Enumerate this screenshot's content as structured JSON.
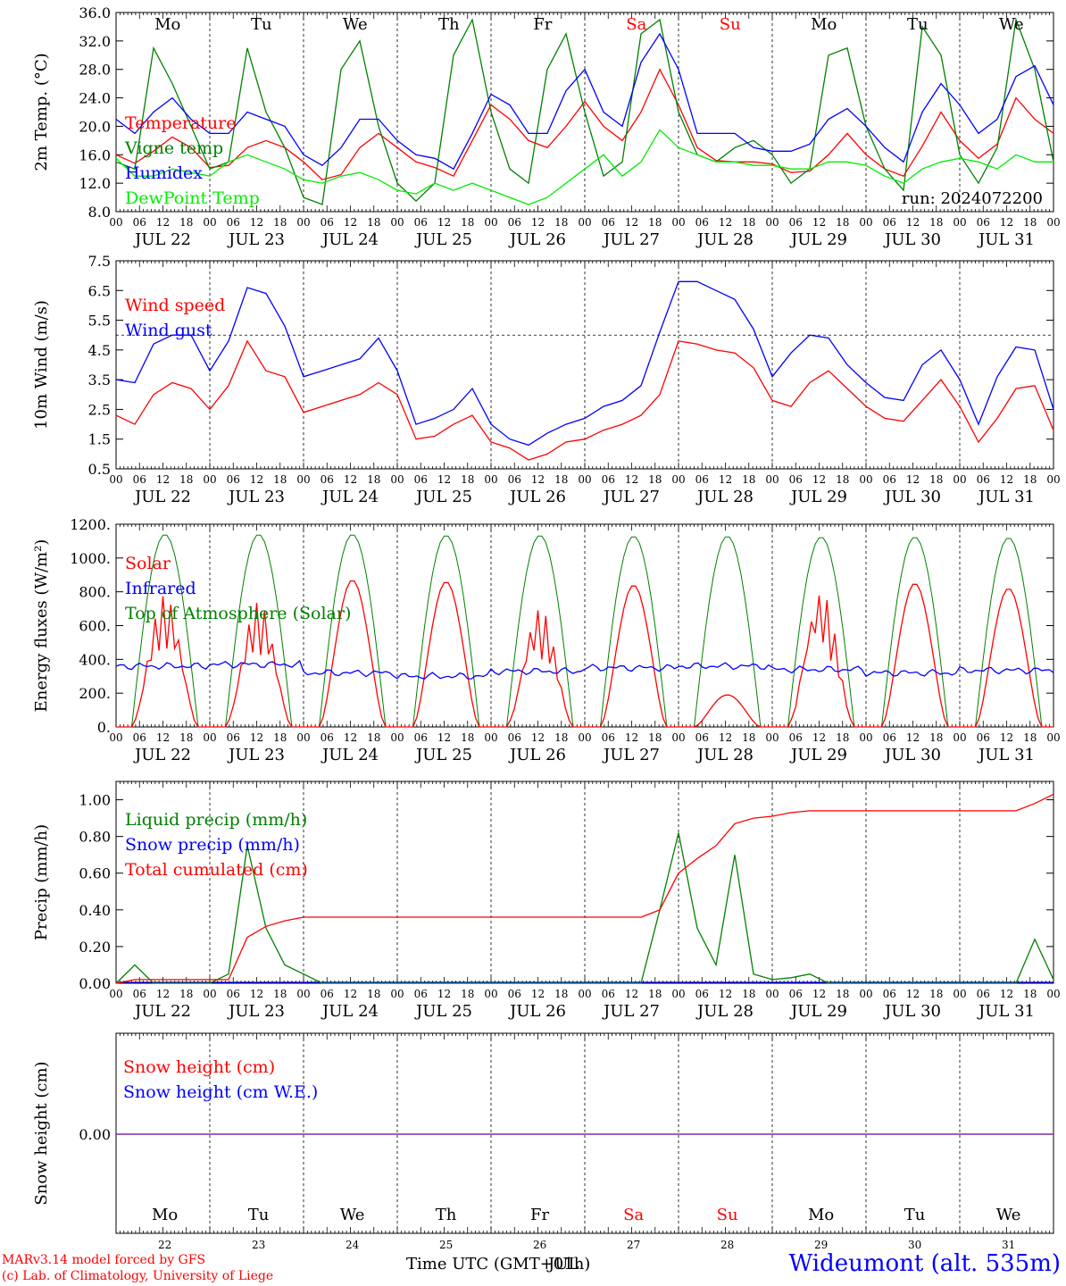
{
  "chart_data": [
    {
      "type": "line",
      "ylabel": "2m Temp. (°C)",
      "ylim": [
        8,
        36
      ],
      "yticks": [
        "8.0",
        "12.0",
        "16.0",
        "20.0",
        "24.0",
        "28.0",
        "32.0",
        "36.0"
      ],
      "grid": "dashed vertical day separators",
      "day_labels": [
        "Mo",
        "Tu",
        "We",
        "Th",
        "Fr",
        "Sa",
        "Su",
        "Mo",
        "Tu",
        "We"
      ],
      "run_label": "run: 2024072200",
      "legend": [
        {
          "name": "Temperature",
          "color": "#ff0000"
        },
        {
          "name": "Vigne temp",
          "color": "#008000"
        },
        {
          "name": "Humidex",
          "color": "#0000ff"
        },
        {
          "name": "DewPoint Temp",
          "color": "#00ee00"
        }
      ],
      "series": [
        {
          "name": "Temperature",
          "color": "#ff0000",
          "values": [
            16,
            14.8,
            16.5,
            18.5,
            17,
            14.2,
            14.5,
            17,
            18,
            17,
            15,
            12.5,
            13.2,
            17,
            19,
            17,
            15,
            14.2,
            13,
            18,
            23,
            21,
            18,
            17,
            20,
            23.5,
            20,
            18,
            22,
            28,
            23,
            17,
            15.2,
            15,
            15,
            14.7,
            13.5,
            13.7,
            16,
            19,
            16,
            14,
            13,
            17.2,
            22,
            18,
            15.5,
            17.5,
            24,
            21,
            19
          ]
        },
        {
          "name": "Vigne temp",
          "color": "#008000",
          "values": [
            15,
            14,
            31,
            26,
            20,
            14,
            15,
            31,
            22,
            17,
            10,
            9,
            28,
            32,
            20,
            12,
            9.5,
            12,
            30,
            35,
            22,
            14,
            12,
            28,
            33,
            22,
            13,
            15,
            33,
            35,
            22,
            16,
            15,
            17,
            18,
            16,
            12,
            14,
            30,
            31,
            20,
            14,
            11,
            34,
            30,
            16,
            12,
            17,
            35,
            28,
            15
          ]
        },
        {
          "name": "Humidex",
          "color": "#0000ff",
          "values": [
            21,
            19,
            22,
            24,
            21,
            19,
            19,
            22,
            21,
            20,
            16,
            14.5,
            17,
            21,
            21,
            18,
            16,
            15.5,
            14,
            19,
            24.5,
            23,
            19,
            19,
            25,
            28,
            22,
            20,
            29,
            33,
            28,
            19,
            19,
            19,
            17,
            16.5,
            16.5,
            17.5,
            21,
            22.5,
            20,
            17,
            15,
            22,
            26,
            23,
            19,
            21,
            27,
            28.5,
            23
          ]
        },
        {
          "name": "DewPoint Temp",
          "color": "#00ee00",
          "values": [
            15.5,
            13,
            13,
            14,
            13.5,
            13,
            15,
            16,
            15,
            14,
            12.5,
            12,
            13,
            13.5,
            12.5,
            11,
            10.5,
            12,
            11,
            12,
            11,
            10,
            9,
            10,
            12,
            14,
            16,
            13,
            15,
            19.5,
            17,
            16,
            15,
            15,
            14.5,
            14.5,
            14,
            14,
            15,
            15,
            14.5,
            13,
            12,
            14,
            15,
            15.5,
            15,
            14,
            16,
            15,
            15
          ]
        }
      ]
    },
    {
      "type": "line",
      "ylabel": "10m Wind (m/s)",
      "ylim": [
        0.5,
        7.5
      ],
      "yticks": [
        "0.5",
        "1.5",
        "2.5",
        "3.5",
        "4.5",
        "5.5",
        "6.5",
        "7.5"
      ],
      "reference_line": 5.0,
      "legend": [
        {
          "name": "Wind speed",
          "color": "#ff0000"
        },
        {
          "name": "Wind gust",
          "color": "#0000ff"
        }
      ],
      "series": [
        {
          "name": "Wind speed",
          "color": "#ff0000",
          "values": [
            2.3,
            2.0,
            3.0,
            3.4,
            3.2,
            2.5,
            3.3,
            4.8,
            3.8,
            3.6,
            2.4,
            2.6,
            2.8,
            3.0,
            3.4,
            3.0,
            1.5,
            1.6,
            2.0,
            2.3,
            1.4,
            1.2,
            0.8,
            1.0,
            1.4,
            1.5,
            1.8,
            2.0,
            2.3,
            3.0,
            4.8,
            4.7,
            4.5,
            4.4,
            3.9,
            2.8,
            2.6,
            3.4,
            3.8,
            3.2,
            2.6,
            2.2,
            2.1,
            2.8,
            3.5,
            2.6,
            1.4,
            2.2,
            3.2,
            3.3,
            1.8
          ]
        },
        {
          "name": "Wind gust",
          "color": "#0000ff",
          "values": [
            3.5,
            3.4,
            4.7,
            5.0,
            5.0,
            3.8,
            4.8,
            6.6,
            6.4,
            5.3,
            3.6,
            3.8,
            4.0,
            4.2,
            4.9,
            3.8,
            2.0,
            2.2,
            2.5,
            3.2,
            2.0,
            1.5,
            1.3,
            1.7,
            2.0,
            2.2,
            2.6,
            2.8,
            3.3,
            5.1,
            6.8,
            6.8,
            6.5,
            6.2,
            5.2,
            3.6,
            4.4,
            5.0,
            4.9,
            4.0,
            3.4,
            2.9,
            2.8,
            4.0,
            4.5,
            3.5,
            2.0,
            3.6,
            4.6,
            4.5,
            2.5
          ]
        }
      ]
    },
    {
      "type": "line",
      "ylabel": "Energy fluxes (W/m²)",
      "ylim": [
        0,
        1200
      ],
      "yticks": [
        "0.",
        "200.",
        "400.",
        "600.",
        "800.",
        "1000.",
        "1200."
      ],
      "legend": [
        {
          "name": "Solar",
          "color": "#ff0000"
        },
        {
          "name": "Infrared",
          "color": "#0000ff"
        },
        {
          "name": "Top of Atmosphere (Solar)",
          "color": "#008000"
        }
      ],
      "toa_peak": [
        1140,
        1140,
        1140,
        1135,
        1135,
        1130,
        1130,
        1125,
        1125,
        1120
      ],
      "solar_peak": [
        780,
        740,
        870,
        860,
        700,
        840,
        190,
        800,
        850,
        820
      ],
      "infrared_mean": [
        360,
        370,
        320,
        300,
        330,
        350,
        360,
        340,
        320,
        335
      ]
    },
    {
      "type": "line",
      "ylabel": "Precip (mm/h)",
      "ylim": [
        0,
        1.1
      ],
      "yticks": [
        "0.00",
        "0.20",
        "0.40",
        "0.60",
        "0.80",
        "1.00"
      ],
      "legend": [
        {
          "name": "Liquid precip (mm/h)",
          "color": "#008000"
        },
        {
          "name": "Snow precip (mm/h)",
          "color": "#0000ff"
        },
        {
          "name": "Total cumulated (cm)",
          "color": "#ff0000"
        }
      ],
      "series": [
        {
          "name": "Total cumulated (cm)",
          "color": "#ff0000",
          "values": [
            0,
            0.02,
            0.02,
            0.02,
            0.02,
            0.02,
            0.02,
            0.25,
            0.31,
            0.34,
            0.36,
            0.36,
            0.36,
            0.36,
            0.36,
            0.36,
            0.36,
            0.36,
            0.36,
            0.36,
            0.36,
            0.36,
            0.36,
            0.36,
            0.36,
            0.36,
            0.36,
            0.36,
            0.36,
            0.4,
            0.6,
            0.68,
            0.75,
            0.87,
            0.9,
            0.91,
            0.93,
            0.94,
            0.94,
            0.94,
            0.94,
            0.94,
            0.94,
            0.94,
            0.94,
            0.94,
            0.94,
            0.94,
            0.94,
            0.98,
            1.03
          ]
        },
        {
          "name": "Liquid precip (mm/h)",
          "color": "#008000",
          "values": [
            0,
            0.1,
            0,
            0,
            0,
            0,
            0.05,
            0.75,
            0.3,
            0.1,
            0.05,
            0,
            0,
            0,
            0,
            0,
            0,
            0,
            0,
            0,
            0,
            0,
            0,
            0,
            0,
            0,
            0,
            0,
            0,
            0.4,
            0.82,
            0.3,
            0.1,
            0.7,
            0.05,
            0.02,
            0.03,
            0.05,
            0,
            0,
            0,
            0,
            0,
            0,
            0,
            0,
            0,
            0,
            0,
            0.24,
            0.02
          ]
        }
      ]
    },
    {
      "type": "line",
      "ylabel": "Snow height (cm)",
      "ytick": "0.00",
      "legend": [
        {
          "name": "Snow height (cm)",
          "color": "#ff0000"
        },
        {
          "name": "Snow height (cm W.E.)",
          "color": "#0000ff"
        }
      ],
      "line_color": "#7a2aa8"
    }
  ],
  "time_axis": {
    "hour_labels": [
      "00",
      "06",
      "12",
      "18"
    ],
    "end_label": "00",
    "date_labels": [
      "JUL 22",
      "JUL 23",
      "JUL 24",
      "JUL 25",
      "JUL 26",
      "JUL 27",
      "JUL 28",
      "JUL 29",
      "JUL 30",
      "JUL 31"
    ],
    "bottom_days": [
      "Mo",
      "Tu",
      "We",
      "Th",
      "Fr",
      "Sa",
      "Su",
      "Mo",
      "Tu",
      "We"
    ],
    "bottom_dates": [
      "22",
      "23",
      "24",
      "25",
      "26",
      "27",
      "28",
      "29",
      "30",
      "31"
    ],
    "weekend_color": "#ff0000",
    "title": "Time UTC (GMT+01h)",
    "title_overlay": "JUL"
  },
  "footer": {
    "model_line": "MARv3.14 model forced by GFS",
    "lab_line": "(c) Lab. of Climatology, University of Liege",
    "station": "Wideumont (alt. 535m)",
    "model_color": "#ff0000",
    "station_color": "#0000ff"
  }
}
